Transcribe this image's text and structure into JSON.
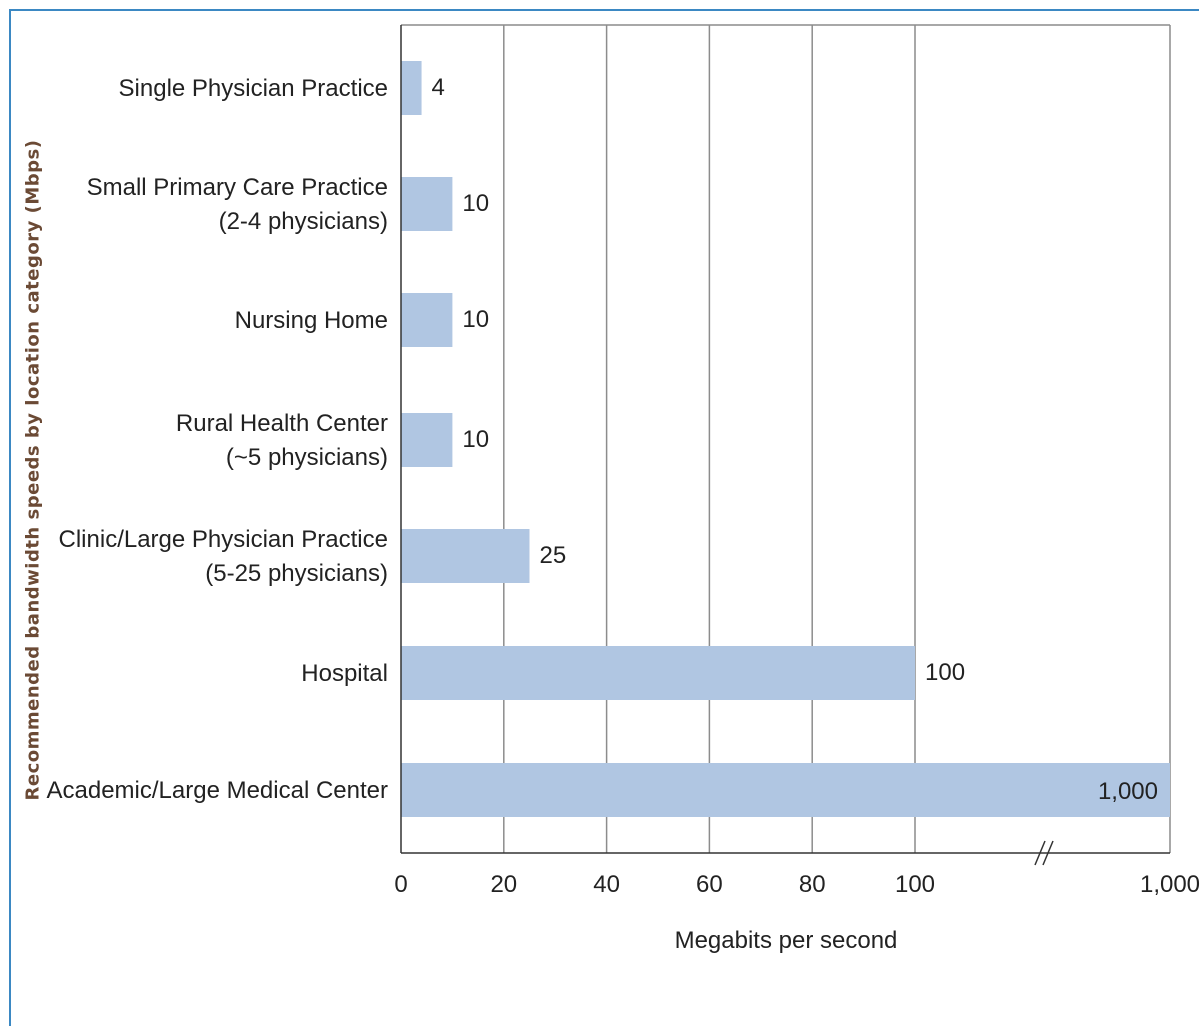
{
  "chart_data": {
    "type": "bar",
    "orientation": "horizontal",
    "ylabel": "Recommended bandwidth speeds by location category (Mbps)",
    "xlabel": "Megabits per second",
    "categories": [
      [
        "Single Physician Practice"
      ],
      [
        "Small Primary Care Practice",
        "(2-4 physicians)"
      ],
      [
        "Nursing Home"
      ],
      [
        "Rural Health Center",
        "(~5 physicians)"
      ],
      [
        "Clinic/Large Physician Practice",
        "(5-25 physicians)"
      ],
      [
        "Hospital"
      ],
      [
        "Academic/Large Medical Center"
      ]
    ],
    "values": [
      4,
      10,
      10,
      10,
      25,
      100,
      1000
    ],
    "value_labels": [
      "4",
      "10",
      "10",
      "10",
      "25",
      "100",
      "1,000"
    ],
    "x_ticks": [
      {
        "value": 0,
        "label": "0"
      },
      {
        "value": 20,
        "label": "20"
      },
      {
        "value": 40,
        "label": "40"
      },
      {
        "value": 60,
        "label": "60"
      },
      {
        "value": 80,
        "label": "80"
      },
      {
        "value": 100,
        "label": "100"
      },
      {
        "value": 1000,
        "label": "1,000"
      }
    ],
    "xlim": [
      0,
      1000
    ],
    "axis_break": {
      "between": [
        100,
        1000
      ],
      "symbol": "//"
    },
    "grid": true,
    "bar_color": "#b0c6e2",
    "grid_color": "#8c8c8c"
  }
}
